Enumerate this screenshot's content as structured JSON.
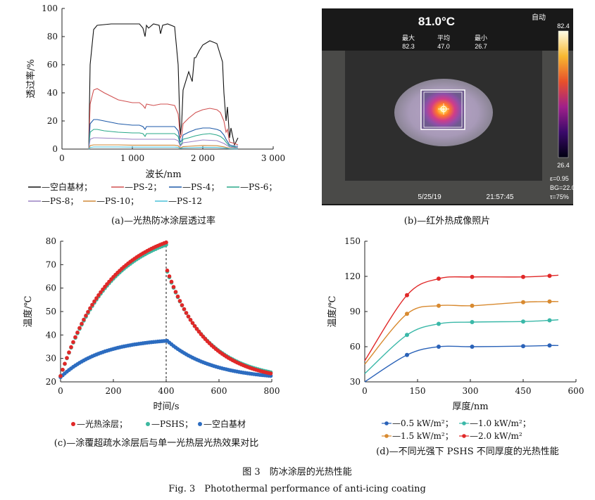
{
  "figure": {
    "caption_cn": "图 3　防冰涂层的光热性能",
    "caption_en": "Fig. 3　Photothermal performance of anti-icing coating"
  },
  "panels": {
    "a": {
      "caption": "(a)—光热防冰涂层透过率",
      "legend": [
        "—空白基材；",
        "—PS-2；",
        "—PS-4；",
        "—PS-6；",
        "—PS-8；",
        "—PS-10；",
        "—PS-12"
      ]
    },
    "b": {
      "caption": "(b)—红外热成像照片",
      "temp": "81.0°C",
      "mode": "自动",
      "stat_labels": [
        "最大",
        "平均",
        "最小"
      ],
      "stat_values": [
        "82.3",
        "47.0",
        "26.7"
      ],
      "scale_max": "82.4",
      "scale_min": "26.4",
      "params": [
        "ε=0.95",
        "BG=22.0",
        "τ=75%"
      ],
      "date": "5/25/19",
      "time": "21:57:45"
    },
    "c": {
      "caption": "(c)—涂覆超疏水涂层后与单一光热层光热效果对比",
      "legend": [
        "—光热涂层；",
        "—PSHS；",
        "—空白基材"
      ]
    },
    "d": {
      "caption": "(d)—不同光强下 PSHS 不同厚度的光热性能",
      "legend": [
        "—0.5 kW/m²；",
        "—1.0 kW/m²；",
        "—1.5 kW/m²；",
        "—2.0 kW/m²"
      ]
    }
  },
  "chart_data": [
    {
      "id": "a",
      "type": "line",
      "xlabel": "波长/nm",
      "ylabel": "透过率/%",
      "xlim": [
        0,
        3000
      ],
      "ylim": [
        0,
        100
      ],
      "xticks": [
        0,
        1000,
        2000,
        3000
      ],
      "xtick_labels": [
        "0",
        "1 000",
        "2 000",
        "3 000"
      ],
      "yticks": [
        0,
        20,
        40,
        60,
        80,
        100
      ],
      "series": [
        {
          "name": "空白基材",
          "color": "#111111",
          "x": [
            380,
            400,
            450,
            500,
            700,
            900,
            1100,
            1150,
            1180,
            1200,
            1230,
            1300,
            1380,
            1400,
            1430,
            1500,
            1600,
            1650,
            1680,
            1700,
            1720,
            1800,
            1850,
            1880,
            1900,
            1950,
            2000,
            2100,
            2200,
            2280,
            2300,
            2330,
            2350,
            2380,
            2400,
            2450,
            2500
          ],
          "y": [
            0,
            60,
            85,
            88,
            89,
            89,
            89,
            86,
            80,
            88,
            86,
            89,
            88,
            82,
            88,
            89,
            87,
            60,
            10,
            18,
            42,
            55,
            48,
            65,
            65,
            70,
            74,
            77,
            75,
            62,
            40,
            20,
            30,
            8,
            15,
            3,
            8
          ]
        },
        {
          "name": "PS-2",
          "color": "#d05050",
          "x": [
            380,
            400,
            450,
            500,
            600,
            800,
            1000,
            1100,
            1150,
            1180,
            1200,
            1300,
            1400,
            1500,
            1600,
            1650,
            1680,
            1700,
            1720,
            1800,
            1900,
            2000,
            2100,
            2200,
            2250,
            2300,
            2330,
            2350,
            2380,
            2450,
            2500
          ],
          "y": [
            0,
            32,
            42,
            43,
            40,
            35,
            33,
            33,
            31,
            29,
            32,
            31,
            32,
            32,
            31,
            25,
            8,
            10,
            18,
            22,
            26,
            28,
            29,
            28,
            26,
            20,
            12,
            14,
            5,
            4,
            3
          ]
        },
        {
          "name": "PS-4",
          "color": "#1e5aa8",
          "x": [
            380,
            400,
            450,
            500,
            600,
            800,
            1000,
            1100,
            1150,
            1180,
            1200,
            1300,
            1500,
            1600,
            1650,
            1680,
            1700,
            1720,
            1800,
            1900,
            2000,
            2100,
            2200,
            2250,
            2300,
            2330,
            2380,
            2450,
            2500
          ],
          "y": [
            0,
            18,
            21,
            21,
            20,
            18,
            17,
            17,
            16,
            14,
            16,
            16,
            16,
            16,
            13,
            5,
            6,
            10,
            12,
            14,
            15,
            15,
            14,
            13,
            10,
            7,
            3,
            2,
            2
          ]
        },
        {
          "name": "PS-6",
          "color": "#2aa889",
          "x": [
            380,
            400,
            450,
            500,
            600,
            800,
            1000,
            1100,
            1150,
            1180,
            1200,
            1300,
            1500,
            1600,
            1650,
            1680,
            1700,
            1720,
            1800,
            1900,
            2000,
            2100,
            2200,
            2250,
            2300,
            2330,
            2380,
            2450,
            2500
          ],
          "y": [
            0,
            12,
            14,
            14,
            13,
            12,
            11.5,
            11.5,
            11,
            9,
            11,
            11,
            11,
            11,
            9,
            3,
            4,
            7,
            8,
            9.5,
            10.5,
            11,
            10,
            9,
            7,
            5,
            2,
            1.5,
            1
          ]
        },
        {
          "name": "PS-8",
          "color": "#9a80c4",
          "x": [
            380,
            400,
            450,
            500,
            800,
            1000,
            1200,
            1500,
            1600,
            1650,
            1680,
            1720,
            1800,
            2000,
            2200,
            2300,
            2380,
            2450,
            2500
          ],
          "y": [
            0,
            7,
            8,
            8,
            7.5,
            7,
            7,
            7,
            7,
            6,
            2,
            4.5,
            5,
            6.5,
            6,
            4,
            1.5,
            1,
            1
          ]
        },
        {
          "name": "PS-10",
          "color": "#d08a3a",
          "x": [
            380,
            400,
            450,
            500,
            800,
            1000,
            1200,
            1500,
            1600,
            1650,
            1680,
            1720,
            1800,
            2000,
            2200,
            2300,
            2380,
            2450,
            2500
          ],
          "y": [
            0,
            2.5,
            3,
            3,
            3,
            2.8,
            2.8,
            2.8,
            2.8,
            2.4,
            0.8,
            1.8,
            2,
            2.6,
            2.4,
            1.6,
            0.6,
            0.4,
            0.4
          ]
        },
        {
          "name": "PS-12",
          "color": "#4cc0d8",
          "x": [
            380,
            400,
            450,
            500,
            800,
            1000,
            1200,
            1500,
            1600,
            1650,
            1680,
            1720,
            1800,
            2000,
            2200,
            2300,
            2380,
            2450,
            2500
          ],
          "y": [
            0,
            1.2,
            1.5,
            1.5,
            1.5,
            1.4,
            1.4,
            1.4,
            1.4,
            1.2,
            0.4,
            0.9,
            1,
            1.3,
            1.2,
            0.8,
            0.3,
            0.2,
            0.2
          ]
        }
      ]
    },
    {
      "id": "c",
      "type": "scatter",
      "xlabel": "时间/s",
      "ylabel": "温度/℃",
      "xlim": [
        0,
        800
      ],
      "ylim": [
        20,
        80
      ],
      "xticks": [
        0,
        200,
        400,
        600,
        800
      ],
      "yticks": [
        20,
        30,
        40,
        50,
        60,
        70,
        80
      ],
      "marker_x": 400,
      "series": [
        {
          "name": "光热涂层",
          "color": "#e02828",
          "heat_end": 79.5,
          "heat_start": 22.5,
          "cool_start": 67.5,
          "cool_end": 23.5
        },
        {
          "name": "PSHS",
          "color": "#3cb8a0",
          "heat_end": 78.5,
          "heat_start": 22.5,
          "cool_start": 67.0,
          "cool_end": 24.0
        },
        {
          "name": "空白基材",
          "color": "#2c6cc0",
          "heat_end": 37.5,
          "heat_start": 22.0,
          "cool_start": 37.5,
          "cool_end": 22.5
        }
      ]
    },
    {
      "id": "d",
      "type": "line",
      "xlabel": "厚度/nm",
      "ylabel": "温度/℃",
      "xlim": [
        0,
        600
      ],
      "ylim": [
        30,
        150
      ],
      "xticks": [
        0,
        150,
        300,
        450,
        600
      ],
      "yticks": [
        30,
        60,
        90,
        120,
        150
      ],
      "series": [
        {
          "name": "0.5 kW/m²",
          "color": "#2a62b8",
          "x": [
            0,
            120,
            210,
            305,
            450,
            525,
            550
          ],
          "y": [
            30,
            53,
            60,
            60,
            60.5,
            61,
            61
          ]
        },
        {
          "name": "1.0 kW/m²",
          "color": "#3ab8a8",
          "x": [
            0,
            120,
            210,
            305,
            450,
            525,
            550
          ],
          "y": [
            37,
            70,
            79.5,
            81,
            81.5,
            82.5,
            83
          ]
        },
        {
          "name": "1.5 kW/m²",
          "color": "#d88a30",
          "x": [
            0,
            120,
            210,
            305,
            450,
            525,
            550
          ],
          "y": [
            45,
            88,
            95,
            95,
            98,
            98.5,
            98.5
          ]
        },
        {
          "name": "2.0 kW/m²",
          "color": "#e02828",
          "x": [
            0,
            120,
            210,
            305,
            450,
            525,
            550
          ],
          "y": [
            48,
            104,
            118,
            119.5,
            119.5,
            120.5,
            121
          ]
        }
      ]
    }
  ]
}
